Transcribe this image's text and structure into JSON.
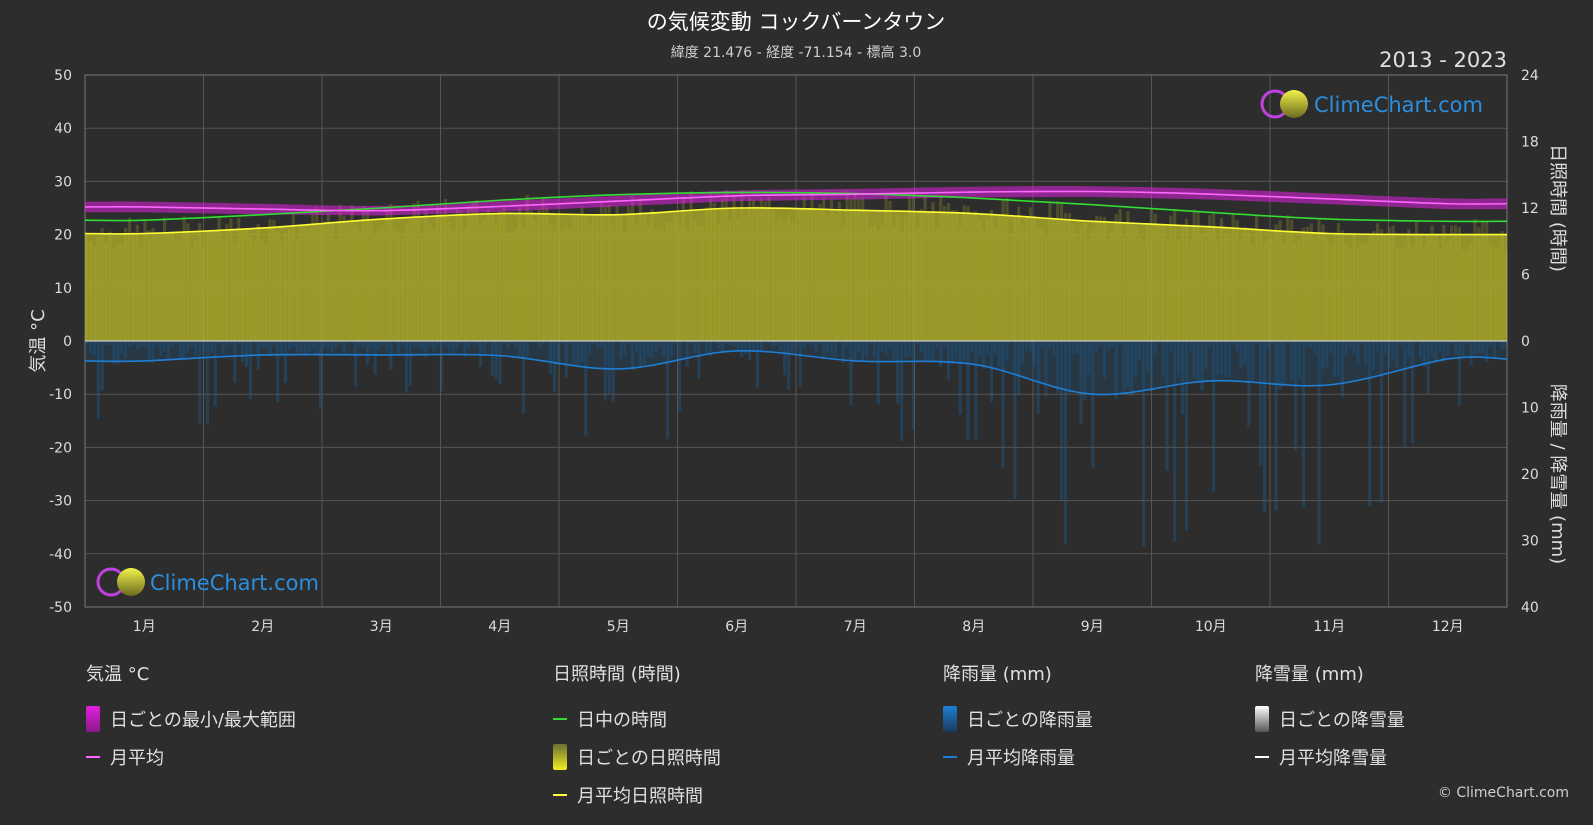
{
  "title": "の気候変動 コックバーンタウン",
  "subtitle": "緯度 21.476 - 経度 -71.154 - 標高 3.0",
  "year_range": "2013 - 2023",
  "logo_text": "ClimeChart.com",
  "copyright": "© ClimeChart.com",
  "colors": {
    "background": "#2d2d2d",
    "temp_range": "#e020e0",
    "temp_avg": "#ff66ff",
    "daylight": "#33dd33",
    "sunshine_fill": "#b5b52a",
    "sunshine_avg": "#ffff33",
    "rain": "#1e7fd8",
    "snow": "#ffffff",
    "logo_text": "#2a8fe0"
  },
  "chart_data": {
    "type": "line",
    "categories": [
      "1月",
      "2月",
      "3月",
      "4月",
      "5月",
      "6月",
      "7月",
      "8月",
      "9月",
      "10月",
      "11月",
      "12月"
    ],
    "y_left": {
      "label": "気温 °C",
      "range": [
        -50,
        50
      ],
      "ticks": [
        50,
        40,
        30,
        20,
        10,
        0,
        -10,
        -20,
        -30,
        -40,
        -50
      ]
    },
    "y_right_top": {
      "label": "日照時間 (時間)",
      "range": [
        0,
        24
      ],
      "ticks": [
        24,
        18,
        12,
        6,
        0
      ]
    },
    "y_right_bottom": {
      "label": "降雨量 / 降雪量 (mm)",
      "range": [
        0,
        40
      ],
      "ticks": [
        0,
        10,
        20,
        30,
        40
      ]
    },
    "series": [
      {
        "name": "月平均",
        "axis": "temperature",
        "values": [
          25.2,
          24.8,
          24.5,
          25.3,
          26.3,
          27.3,
          27.6,
          28.0,
          28.1,
          27.6,
          26.7,
          25.8
        ]
      },
      {
        "name": "日中の時間",
        "axis": "sunshine_hours",
        "values": [
          10.9,
          11.4,
          12.0,
          12.7,
          13.2,
          13.4,
          13.3,
          12.9,
          12.3,
          11.6,
          11.0,
          10.8
        ]
      },
      {
        "name": "月平均日照時間",
        "axis": "sunshine_hours",
        "values": [
          9.7,
          10.2,
          11.0,
          11.5,
          11.4,
          12.0,
          11.8,
          11.5,
          10.8,
          10.3,
          9.7,
          9.6
        ]
      },
      {
        "name": "月平均降雨量",
        "axis": "precipitation_mm",
        "values": [
          3.0,
          2.1,
          2.1,
          2.2,
          4.2,
          1.5,
          3.0,
          3.5,
          8.0,
          6.0,
          6.6,
          2.7
        ]
      },
      {
        "name": "月平均降雪量",
        "axis": "precipitation_mm",
        "values": [
          0,
          0,
          0,
          0,
          0,
          0,
          0,
          0,
          0,
          0,
          0,
          0
        ]
      }
    ],
    "temp_range_band": {
      "name": "日ごとの最小/最大範囲",
      "min": [
        24.2,
        23.8,
        23.6,
        24.3,
        25.3,
        26.3,
        26.6,
        27.0,
        27.1,
        26.6,
        25.7,
        24.8
      ],
      "max": [
        26.2,
        25.8,
        25.4,
        26.3,
        27.3,
        28.3,
        28.6,
        29.0,
        29.1,
        28.6,
        27.7,
        26.8
      ]
    },
    "grid": true
  },
  "legend": {
    "temperature": {
      "header": "気温 °C",
      "items": [
        "日ごとの最小/最大範囲",
        "月平均"
      ]
    },
    "sunshine": {
      "header": "日照時間 (時間)",
      "items": [
        "日中の時間",
        "日ごとの日照時間",
        "月平均日照時間"
      ]
    },
    "rain": {
      "header": "降雨量 (mm)",
      "items": [
        "日ごとの降雨量",
        "月平均降雨量"
      ]
    },
    "snow": {
      "header": "降雪量 (mm)",
      "items": [
        "日ごとの降雪量",
        "月平均降雪量"
      ]
    }
  }
}
